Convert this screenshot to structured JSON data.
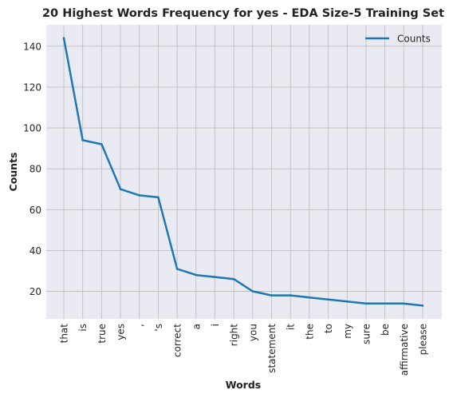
{
  "chart_data": {
    "type": "line",
    "title": "20 Highest Words Frequency for yes - EDA Size-5 Training Set",
    "xlabel": "Words",
    "ylabel": "Counts",
    "categories": [
      "that",
      "is",
      "true",
      "yes",
      ",",
      "'s",
      "correct",
      "a",
      "i",
      "right",
      "you",
      "statement",
      "it",
      "the",
      "to",
      "my",
      "sure",
      "be",
      "affirmative",
      "please"
    ],
    "series": [
      {
        "name": "Counts",
        "values": [
          144,
          94,
          92,
          70,
          67,
          66,
          31,
          28,
          27,
          26,
          20,
          18,
          18,
          17,
          16,
          15,
          14,
          14,
          14,
          13
        ]
      }
    ],
    "ylim": [
      6.5,
      150.5
    ],
    "yticks": [
      20,
      40,
      60,
      80,
      100,
      120,
      140
    ],
    "grid": true,
    "legend": "top-right",
    "colors": {
      "line": "#1f77b4",
      "plot_bg": "#eaeaf2",
      "grid": "#c0c0c0"
    }
  }
}
